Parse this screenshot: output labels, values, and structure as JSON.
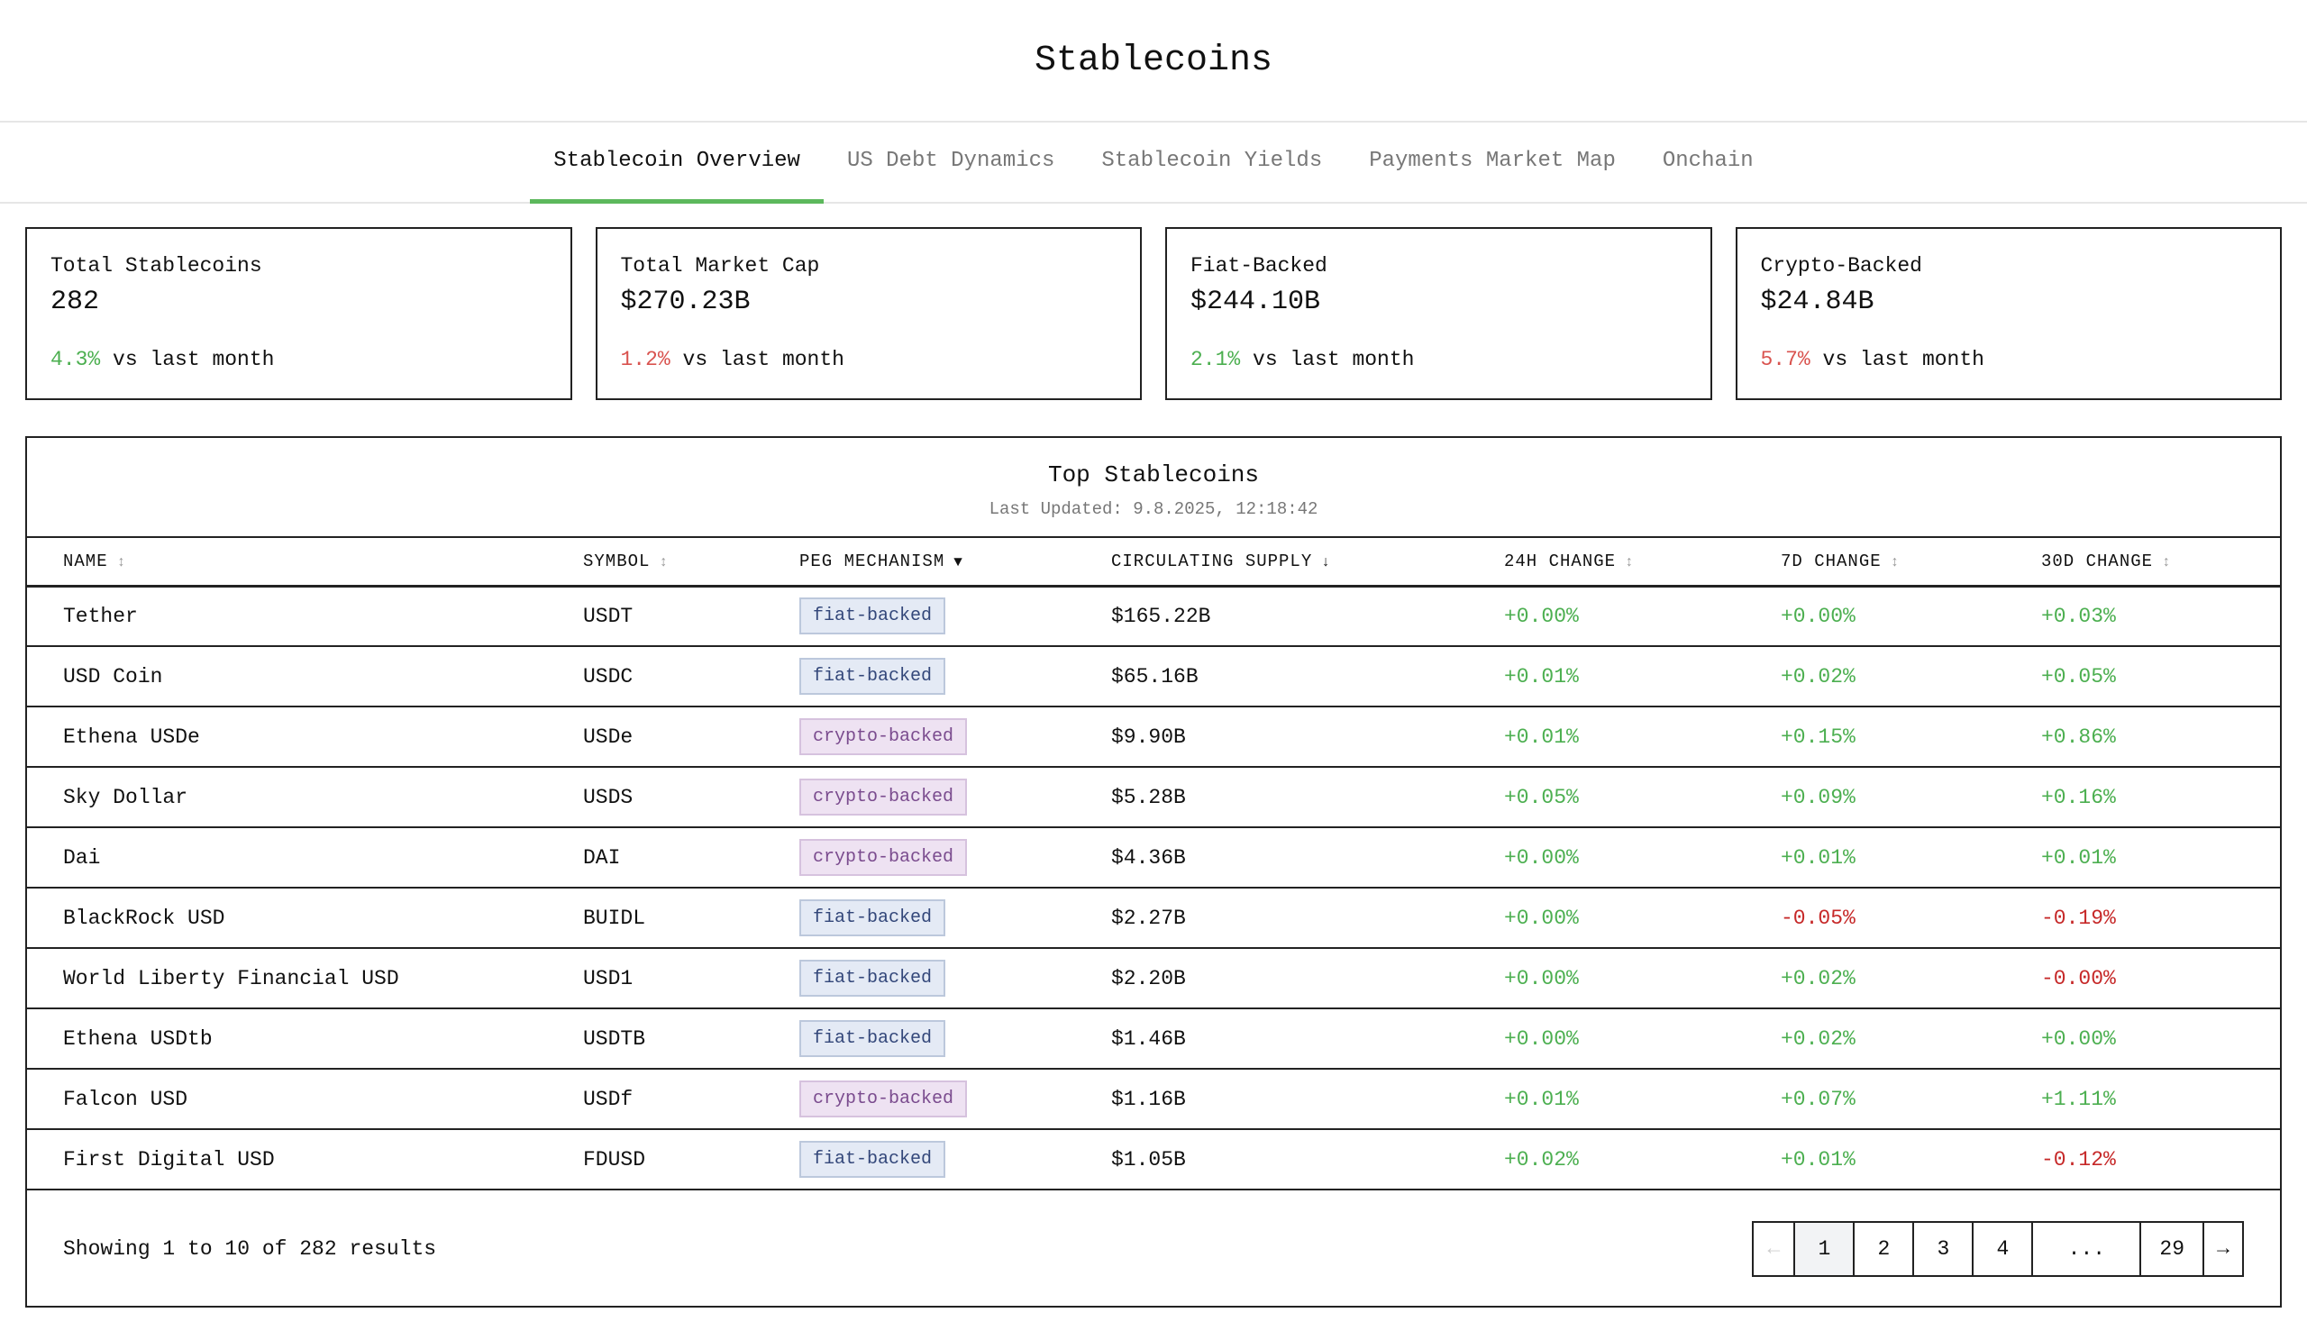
{
  "title": "Stablecoins",
  "tabs": [
    {
      "label": "Stablecoin Overview",
      "active": true
    },
    {
      "label": "US Debt Dynamics"
    },
    {
      "label": "Stablecoin Yields"
    },
    {
      "label": "Payments Market Map"
    },
    {
      "label": "Onchain"
    }
  ],
  "cards": [
    {
      "label": "Total Stablecoins",
      "value": "282",
      "change": "4.3%",
      "dir": "up",
      "suffix": "vs last month"
    },
    {
      "label": "Total Market Cap",
      "value": "$270.23B",
      "change": "1.2%",
      "dir": "down",
      "suffix": "vs last month"
    },
    {
      "label": "Fiat-Backed",
      "value": "$244.10B",
      "change": "2.1%",
      "dir": "up",
      "suffix": "vs last month"
    },
    {
      "label": "Crypto-Backed",
      "value": "$24.84B",
      "change": "5.7%",
      "dir": "down",
      "suffix": "vs last month"
    }
  ],
  "table": {
    "title": "Top Stablecoins",
    "updated": "Last Updated: 9.8.2025, 12:18:42",
    "columns": [
      {
        "label": "NAME",
        "sort": "↕"
      },
      {
        "label": "SYMBOL",
        "sort": "↕"
      },
      {
        "label": "PEG MECHANISM",
        "sort": "▼"
      },
      {
        "label": "CIRCULATING SUPPLY",
        "sort": "↓"
      },
      {
        "label": "24H CHANGE",
        "sort": "↕"
      },
      {
        "label": "7D CHANGE",
        "sort": "↕"
      },
      {
        "label": "30D CHANGE",
        "sort": "↕"
      }
    ],
    "rows": [
      [
        "Tether",
        "USDT",
        "fiat-backed",
        "$165.22B",
        "+0.00%",
        "+0.00%",
        "+0.03%"
      ],
      [
        "USD Coin",
        "USDC",
        "fiat-backed",
        "$65.16B",
        "+0.01%",
        "+0.02%",
        "+0.05%"
      ],
      [
        "Ethena USDe",
        "USDe",
        "crypto-backed",
        "$9.90B",
        "+0.01%",
        "+0.15%",
        "+0.86%"
      ],
      [
        "Sky Dollar",
        "USDS",
        "crypto-backed",
        "$5.28B",
        "+0.05%",
        "+0.09%",
        "+0.16%"
      ],
      [
        "Dai",
        "DAI",
        "crypto-backed",
        "$4.36B",
        "+0.00%",
        "+0.01%",
        "+0.01%"
      ],
      [
        "BlackRock USD",
        "BUIDL",
        "fiat-backed",
        "$2.27B",
        "+0.00%",
        "-0.05%",
        "-0.19%"
      ],
      [
        "World Liberty Financial USD",
        "USD1",
        "fiat-backed",
        "$2.20B",
        "+0.00%",
        "+0.02%",
        "-0.00%"
      ],
      [
        "Ethena USDtb",
        "USDTB",
        "fiat-backed",
        "$1.46B",
        "+0.00%",
        "+0.02%",
        "+0.00%"
      ],
      [
        "Falcon USD",
        "USDf",
        "crypto-backed",
        "$1.16B",
        "+0.01%",
        "+0.07%",
        "+1.11%"
      ],
      [
        "First Digital USD",
        "FDUSD",
        "fiat-backed",
        "$1.05B",
        "+0.02%",
        "+0.01%",
        "-0.12%"
      ]
    ]
  },
  "footer": {
    "info": "Showing 1 to 10 of 282 results",
    "pages": [
      "←",
      "1",
      "2",
      "3",
      "4",
      "...",
      "29",
      "→"
    ],
    "current": "1"
  },
  "colors": {
    "accent": "#5cb85c",
    "positive": "#4caf50",
    "negative": "#c62828"
  }
}
